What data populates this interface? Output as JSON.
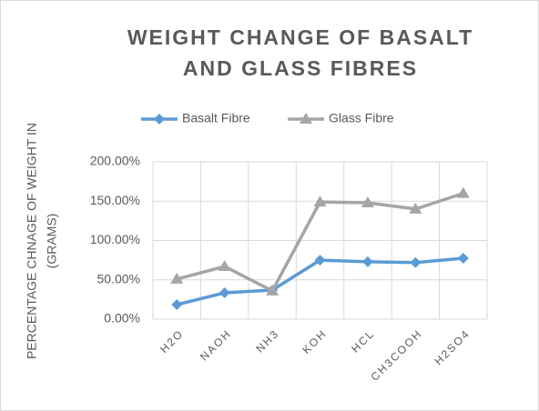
{
  "chart_data": {
    "type": "line",
    "title": [
      "WEIGHT CHANGE OF BASALT",
      "AND GLASS FIBRES"
    ],
    "y_label": [
      "PERCENTAGE CHNAGE OF WEIGHT IN",
      "(GRAMS)"
    ],
    "categories": [
      "H2O",
      "NAOH",
      "NH3",
      "KOH",
      "HCL",
      "CH3COOH",
      "H2SO4"
    ],
    "series": [
      {
        "name": "Basalt Fibre",
        "color": "#5b9bd5",
        "marker": "diamond",
        "values": [
          18.5,
          33.5,
          37,
          75,
          73,
          72,
          77.5
        ]
      },
      {
        "name": "Glass Fibre",
        "color": "#a5a5a5",
        "marker": "triangle",
        "values": [
          51,
          67,
          36,
          149,
          148,
          140,
          160
        ]
      }
    ],
    "ylim": [
      0,
      200
    ],
    "yticks": [
      {
        "value": 0,
        "label": "0.00%"
      },
      {
        "value": 50,
        "label": "50.00%"
      },
      {
        "value": 100,
        "label": "100.00%"
      },
      {
        "value": 150,
        "label": "150.00%"
      },
      {
        "value": 200,
        "label": "200.00%"
      }
    ],
    "grid": true,
    "legend": "top"
  }
}
